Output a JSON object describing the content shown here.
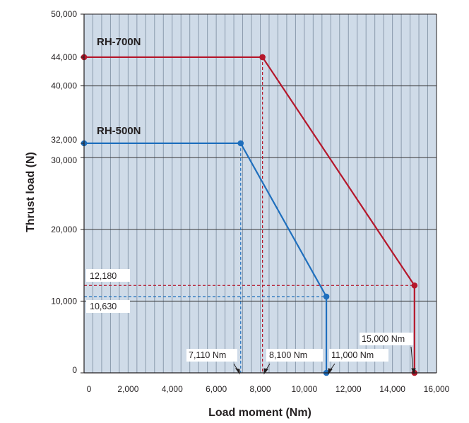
{
  "chart_data": {
    "type": "line",
    "xlabel": "Load moment (Nm)",
    "ylabel": "Thrust load (N)",
    "xlim": [
      0,
      16000
    ],
    "ylim": [
      0,
      50000
    ],
    "x_ticks": [
      "0",
      "2,000",
      "4,000",
      "6,000",
      "8,000",
      "10,000",
      "12,000",
      "14,000",
      "16,000"
    ],
    "y_ticks": [
      {
        "value": 0,
        "label": "0"
      },
      {
        "value": 10000,
        "label": "10,000"
      },
      {
        "value": 20000,
        "label": "20,000"
      },
      {
        "value": 30000,
        "label": "30,000"
      },
      {
        "value": 32000,
        "label": "32,000"
      },
      {
        "value": 40000,
        "label": "40,000"
      },
      {
        "value": 44000,
        "label": "44,000"
      },
      {
        "value": 50000,
        "label": "50,000"
      }
    ],
    "grid": true,
    "colors": {
      "plot_background": "#cfdbe8",
      "minor_grid": "#8a9aac",
      "major_grid": "#3a3a3a",
      "rh700": "#b5172b",
      "rh500": "#1f6fbd"
    },
    "series": [
      {
        "name": "RH-700N",
        "points": [
          [
            0,
            44000
          ],
          [
            8100,
            44000
          ],
          [
            15000,
            12180
          ],
          [
            15000,
            0
          ]
        ]
      },
      {
        "name": "RH-500N",
        "points": [
          [
            0,
            32000
          ],
          [
            7110,
            32000
          ],
          [
            11000,
            10630
          ],
          [
            11000,
            0
          ]
        ]
      }
    ],
    "annotations": {
      "y_values": [
        "12,180",
        "10,630"
      ],
      "x_values": [
        "7,110 Nm",
        "8,100 Nm",
        "11,000 Nm",
        "15,000 Nm"
      ]
    }
  }
}
